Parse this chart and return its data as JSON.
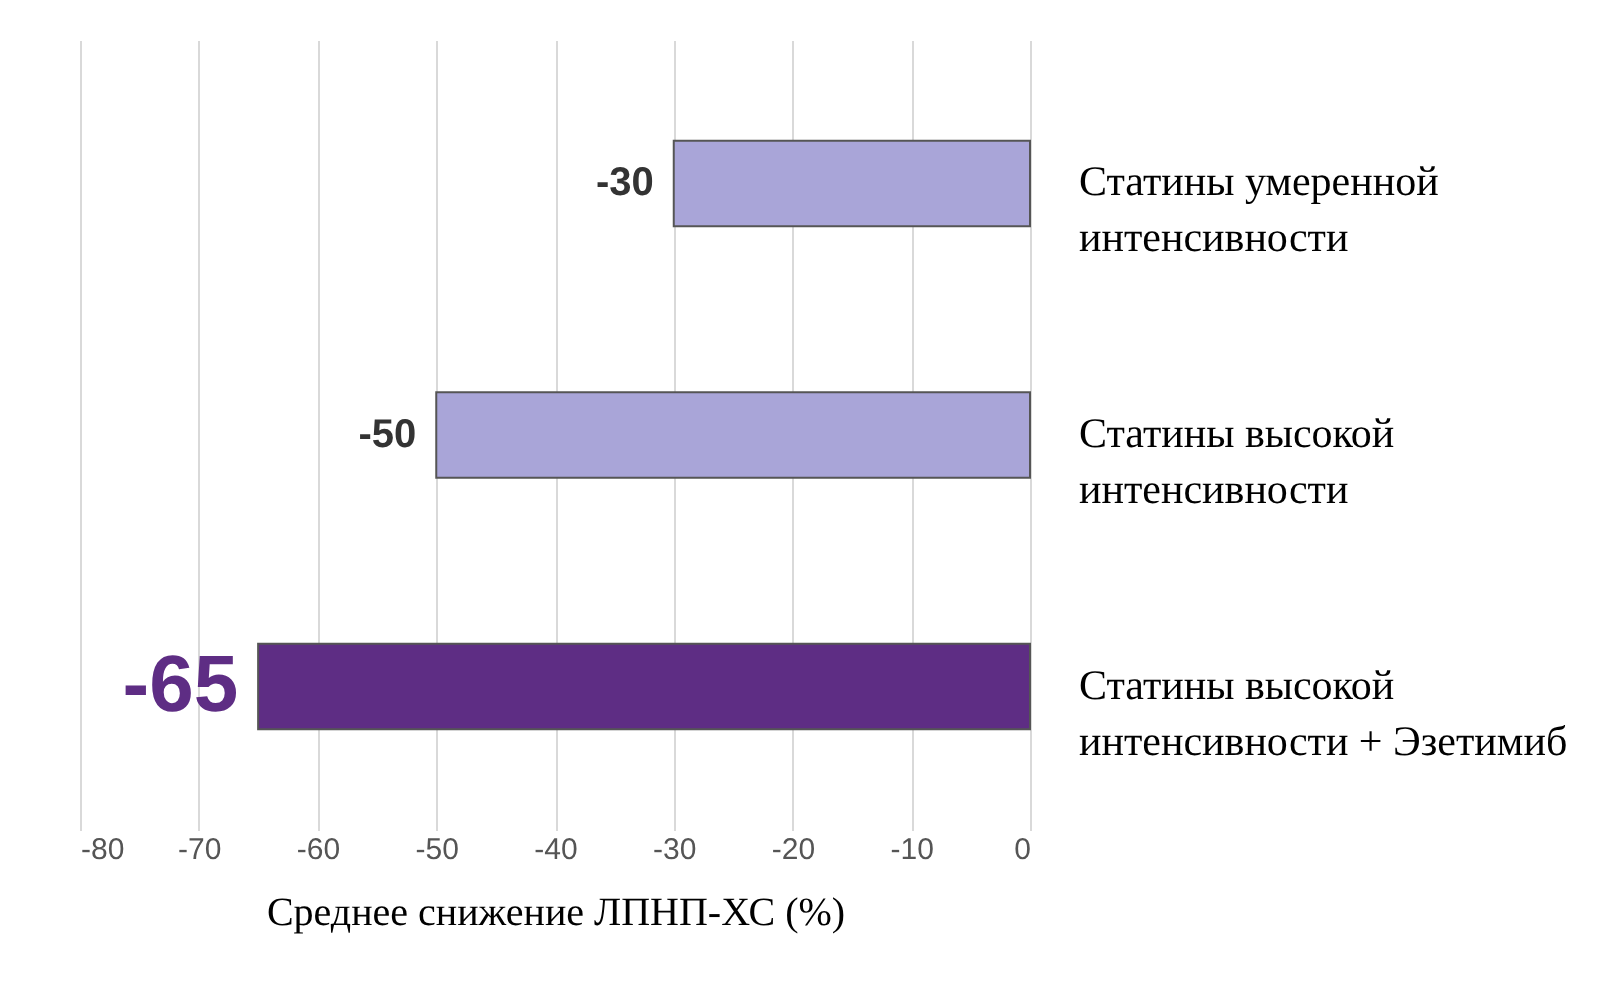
{
  "chart_data": {
    "type": "bar",
    "orientation": "horizontal",
    "xlabel": "Среднее снижение ЛПНП-ХС (%)",
    "categories": [
      "Статины умеренной интенсивности",
      "Статины высокой интенсивности",
      "Статины высокой интенсивности + Эзетимиб"
    ],
    "values": [
      -30,
      -50,
      -65
    ],
    "colors": [
      "#a9a5d8",
      "#a9a5d8",
      "#5e2d84"
    ],
    "data_labels": true,
    "xlim": [
      -80,
      0
    ],
    "xticks": [
      -80,
      -70,
      -60,
      -50,
      -40,
      -30,
      -20,
      -10,
      0
    ],
    "grid": "x"
  }
}
